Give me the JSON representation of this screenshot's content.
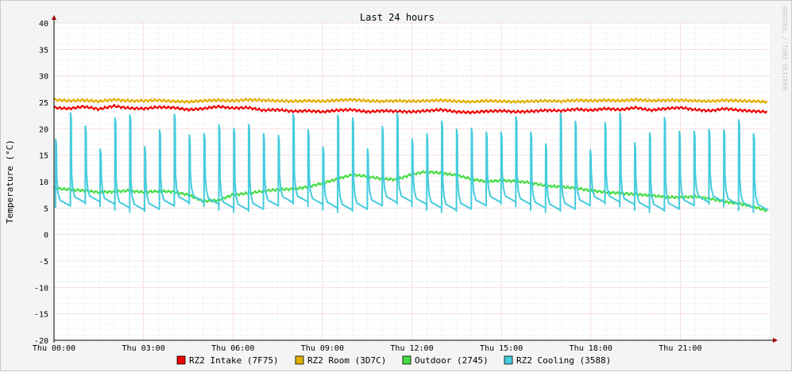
{
  "chart_data": {
    "type": "line",
    "title": "Last 24 hours",
    "ylabel": "Temperature (°C)",
    "xlabel": "",
    "watermark": "RRDTOOL / TOBI OETIKER",
    "ylim": [
      -20,
      40
    ],
    "y_ticks": [
      -20,
      -15,
      -10,
      -5,
      0,
      5,
      10,
      15,
      20,
      25,
      30,
      35,
      40
    ],
    "x_range_hours": [
      0,
      24
    ],
    "x_ticks": [
      {
        "h": 0,
        "label": "Thu 00:00"
      },
      {
        "h": 3,
        "label": "Thu 03:00"
      },
      {
        "h": 6,
        "label": "Thu 06:00"
      },
      {
        "h": 9,
        "label": "Thu 09:00"
      },
      {
        "h": 12,
        "label": "Thu 12:00"
      },
      {
        "h": 15,
        "label": "Thu 15:00"
      },
      {
        "h": 18,
        "label": "Thu 18:00"
      },
      {
        "h": 21,
        "label": "Thu 21:00"
      }
    ],
    "grid": true,
    "legend_position": "bottom",
    "colors": {
      "background": "#f4f4f4",
      "canvas": "#ffffff",
      "major_grid": "#e6a0a0",
      "minor_grid": "#d8d8d8",
      "axis": "#000000",
      "arrow": "#a00000"
    },
    "series": [
      {
        "name": "RZ2 Intake (7F75)",
        "color": "#ee0000",
        "x": [
          0,
          0.5,
          1,
          1.5,
          2,
          2.5,
          3,
          3.5,
          4,
          4.5,
          5,
          5.5,
          6,
          6.5,
          7,
          7.5,
          8,
          8.5,
          9,
          9.5,
          10,
          10.5,
          11,
          11.5,
          12,
          12.5,
          13,
          13.5,
          14,
          14.5,
          15,
          15.5,
          16,
          16.5,
          17,
          17.5,
          18,
          18.5,
          19,
          19.5,
          20,
          20.5,
          21,
          21.5,
          22,
          22.5,
          23,
          23.5,
          23.9
        ],
        "values": [
          24.0,
          23.8,
          24.2,
          23.7,
          24.3,
          23.9,
          23.8,
          24.1,
          24.0,
          23.6,
          23.8,
          24.2,
          23.9,
          24.0,
          23.5,
          23.6,
          23.3,
          23.4,
          23.2,
          23.5,
          23.6,
          23.2,
          23.4,
          23.3,
          23.2,
          23.4,
          23.6,
          23.2,
          23.1,
          23.3,
          23.4,
          23.2,
          23.3,
          23.5,
          23.4,
          23.7,
          23.5,
          23.8,
          23.6,
          24.0,
          23.5,
          23.8,
          24.0,
          23.6,
          23.4,
          23.8,
          23.5,
          23.3,
          23.2
        ]
      },
      {
        "name": "RZ2 Room (3D7C)",
        "color": "#e0b000",
        "x": [
          0,
          0.5,
          1,
          1.5,
          2,
          2.5,
          3,
          3.5,
          4,
          4.5,
          5,
          5.5,
          6,
          6.5,
          7,
          7.5,
          8,
          8.5,
          9,
          9.5,
          10,
          10.5,
          11,
          11.5,
          12,
          12.5,
          13,
          13.5,
          14,
          14.5,
          15,
          15.5,
          16,
          16.5,
          17,
          17.5,
          18,
          18.5,
          19,
          19.5,
          20,
          20.5,
          21,
          21.5,
          22,
          22.5,
          23,
          23.5,
          23.9
        ],
        "values": [
          25.5,
          25.3,
          25.4,
          25.2,
          25.5,
          25.3,
          25.3,
          25.4,
          25.2,
          25.1,
          25.3,
          25.4,
          25.3,
          25.5,
          25.4,
          25.3,
          25.2,
          25.3,
          25.2,
          25.4,
          25.5,
          25.3,
          25.2,
          25.3,
          25.2,
          25.3,
          25.4,
          25.2,
          25.1,
          25.3,
          25.2,
          25.1,
          25.2,
          25.3,
          25.2,
          25.4,
          25.3,
          25.4,
          25.3,
          25.5,
          25.3,
          25.4,
          25.4,
          25.3,
          25.2,
          25.4,
          25.3,
          25.2,
          25.1
        ]
      },
      {
        "name": "Outdoor (2745)",
        "color": "#44dd44",
        "x": [
          0,
          0.5,
          1,
          1.5,
          2,
          2.5,
          3,
          3.5,
          4,
          4.5,
          5,
          5.5,
          6,
          6.5,
          7,
          7.5,
          8,
          8.5,
          9,
          9.5,
          10,
          10.5,
          11,
          11.5,
          12,
          12.5,
          13,
          13.5,
          14,
          14.5,
          15,
          15.5,
          16,
          16.5,
          17,
          17.5,
          18,
          18.5,
          19,
          19.5,
          20,
          20.5,
          21,
          21.5,
          22,
          22.5,
          23,
          23.5,
          23.9
        ],
        "values": [
          8.8,
          8.5,
          8.3,
          8.0,
          8.1,
          8.3,
          8.0,
          8.2,
          8.1,
          7.5,
          6.3,
          6.5,
          7.5,
          7.8,
          8.2,
          8.5,
          8.6,
          9.0,
          9.7,
          10.5,
          11.3,
          11.0,
          10.5,
          10.4,
          11.4,
          11.9,
          11.6,
          11.2,
          10.5,
          10.0,
          10.2,
          10.1,
          9.8,
          9.2,
          9.0,
          8.8,
          8.3,
          8.0,
          7.8,
          7.6,
          7.4,
          7.1,
          7.0,
          7.2,
          6.8,
          6.2,
          5.8,
          5.2,
          4.5
        ]
      },
      {
        "name": "RZ2 Cooling (3588)",
        "color": "#44ccdd",
        "peak": 21,
        "base": 5,
        "cycles": 48
      }
    ]
  }
}
